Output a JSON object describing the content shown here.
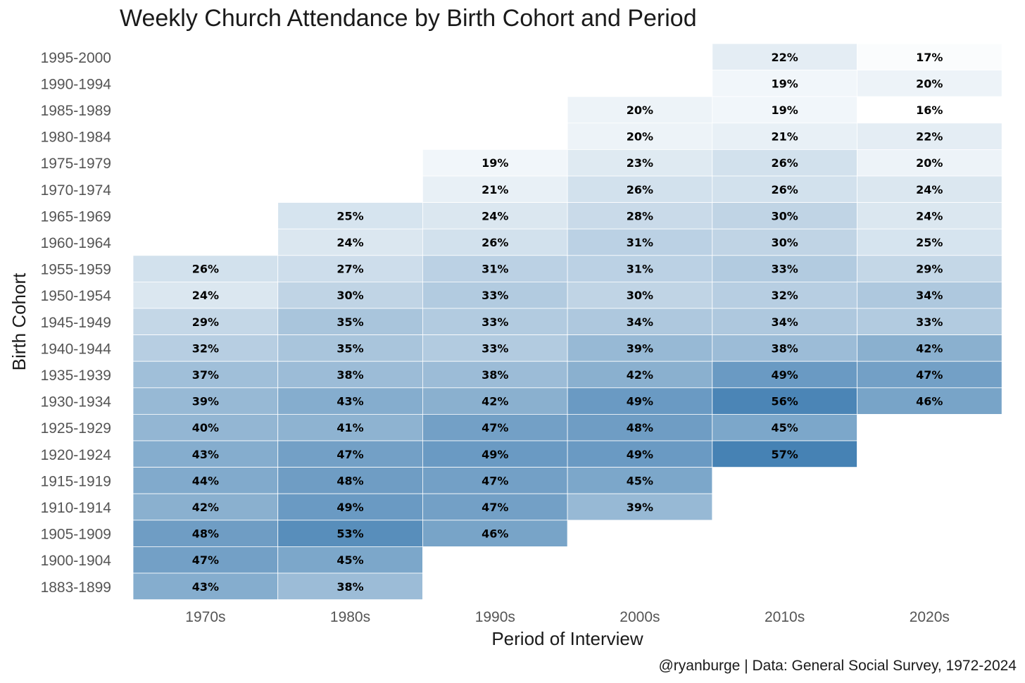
{
  "chart_data": {
    "type": "heatmap",
    "title": "Weekly Church Attendance by Birth Cohort and Period",
    "xlabel": "Period of Interview",
    "ylabel": "Birth Cohort",
    "caption": "@ryanburge | Data: General Social Survey, 1972-2024",
    "x_categories": [
      "1970s",
      "1980s",
      "1990s",
      "2000s",
      "2010s",
      "2020s"
    ],
    "y_categories": [
      "1995-2000",
      "1990-1994",
      "1985-1989",
      "1980-1984",
      "1975-1979",
      "1970-1974",
      "1965-1969",
      "1960-1964",
      "1955-1959",
      "1950-1954",
      "1945-1949",
      "1940-1944",
      "1935-1939",
      "1930-1934",
      "1925-1929",
      "1920-1924",
      "1915-1919",
      "1910-1914",
      "1905-1909",
      "1900-1904",
      "1883-1899"
    ],
    "value_format": "percent",
    "color_scale": {
      "low": "#ffffff",
      "high": "#4682b4",
      "domain": [
        16,
        57
      ]
    },
    "values": [
      [
        null,
        null,
        null,
        null,
        22,
        17
      ],
      [
        null,
        null,
        null,
        null,
        19,
        20
      ],
      [
        null,
        null,
        null,
        20,
        19,
        16
      ],
      [
        null,
        null,
        null,
        20,
        21,
        22
      ],
      [
        null,
        null,
        19,
        23,
        26,
        20
      ],
      [
        null,
        null,
        21,
        26,
        26,
        24
      ],
      [
        null,
        25,
        24,
        28,
        30,
        24
      ],
      [
        null,
        24,
        26,
        31,
        30,
        25
      ],
      [
        26,
        27,
        31,
        31,
        33,
        29
      ],
      [
        24,
        30,
        33,
        30,
        32,
        34
      ],
      [
        29,
        35,
        33,
        34,
        34,
        33
      ],
      [
        32,
        35,
        33,
        39,
        38,
        42
      ],
      [
        37,
        38,
        38,
        42,
        49,
        47
      ],
      [
        39,
        43,
        42,
        49,
        56,
        46
      ],
      [
        40,
        41,
        47,
        48,
        45,
        null
      ],
      [
        43,
        47,
        49,
        49,
        57,
        null
      ],
      [
        44,
        48,
        47,
        45,
        null,
        null
      ],
      [
        42,
        49,
        47,
        39,
        null,
        null
      ],
      [
        48,
        53,
        46,
        null,
        null,
        null
      ],
      [
        47,
        45,
        null,
        null,
        null,
        null
      ],
      [
        43,
        38,
        null,
        null,
        null,
        null
      ]
    ]
  }
}
